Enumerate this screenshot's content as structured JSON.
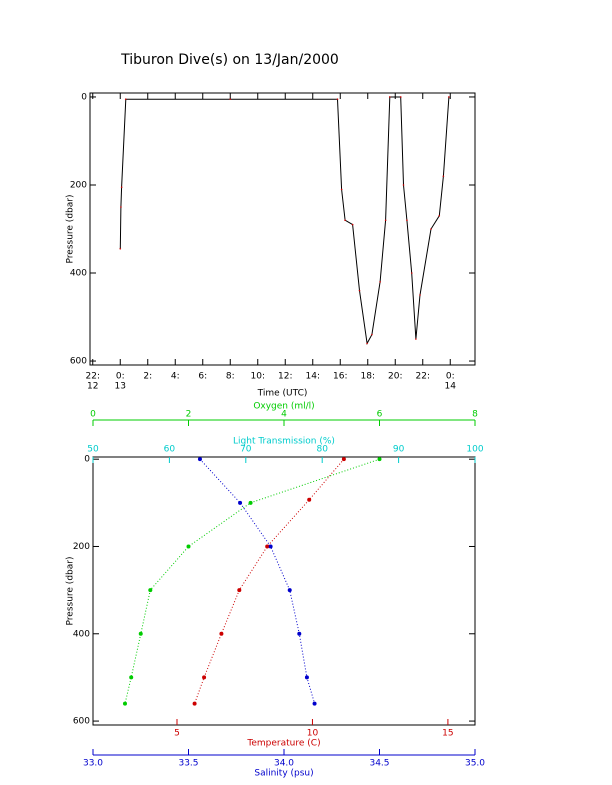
{
  "title": "Tiburon Dive(s) on 13/Jan/2000",
  "chart_data": [
    {
      "type": "line",
      "ylabel": "Pressure (dbar)",
      "xlabel": "Time (UTC)",
      "xlim": [
        -2.2,
        25.8
      ],
      "ylim": [
        609,
        -9
      ],
      "xticks": [
        {
          "value": -2,
          "label": "22:"
        },
        {
          "value": 0,
          "label": "0:"
        },
        {
          "value": 2,
          "label": "2:"
        },
        {
          "value": 4,
          "label": "4:"
        },
        {
          "value": 6,
          "label": "6:"
        },
        {
          "value": 8,
          "label": "8:"
        },
        {
          "value": 10,
          "label": "10:"
        },
        {
          "value": 12,
          "label": "12:"
        },
        {
          "value": 14,
          "label": "14:"
        },
        {
          "value": 16,
          "label": "16:"
        },
        {
          "value": 18,
          "label": "18:"
        },
        {
          "value": 20,
          "label": "20:"
        },
        {
          "value": 22,
          "label": "22:"
        },
        {
          "value": 24,
          "label": "0:"
        }
      ],
      "xtick_dates": [
        {
          "value": -2,
          "label": "12"
        },
        {
          "value": 0,
          "label": "13"
        },
        {
          "value": 24,
          "label": "14"
        }
      ],
      "yticks": [
        0,
        200,
        400,
        600
      ],
      "series": [
        {
          "color": "#000000",
          "x": [
            0.0,
            0.05,
            0.1,
            0.4,
            8,
            15.8,
            16.1,
            16.35,
            16.9,
            17.4,
            17.95,
            18.3,
            18.9,
            19.3,
            19.6,
            20.4,
            20.6,
            20.85,
            21.2,
            21.5,
            21.8,
            22.6,
            23.2,
            23.5,
            23.9
          ],
          "values": [
            345,
            250,
            205,
            5,
            5,
            5,
            210,
            280,
            290,
            440,
            560,
            540,
            420,
            280,
            0,
            0,
            200,
            280,
            400,
            550,
            450,
            300,
            270,
            180,
            0
          ]
        }
      ]
    },
    {
      "type": "scatter",
      "ylabel": "Pressure (dbar)",
      "ylim": [
        609,
        -5
      ],
      "yticks": [
        0,
        200,
        400,
        600
      ],
      "x_axes": [
        {
          "label": "Temperature (C)",
          "color": "#cc0000",
          "position": "bottom",
          "xlim": [
            1.9,
            16.0
          ],
          "xticks": [
            5,
            10,
            15
          ]
        },
        {
          "label": "Salinity (psu)",
          "color": "#0000cc",
          "position": "bottom2",
          "xlim": [
            33.0,
            35.0
          ],
          "xticks": [
            {
              "value": 33.0,
              "label": "33.0"
            },
            {
              "value": 33.5,
              "label": "33.5"
            },
            {
              "value": 34.0,
              "label": "34.0"
            },
            {
              "value": 34.5,
              "label": "34.5"
            },
            {
              "value": 35.0,
              "label": "35.0"
            }
          ]
        },
        {
          "label": "Oxygen (ml/l)",
          "color": "#00cc00",
          "position": "top2",
          "xlim": [
            0,
            8
          ],
          "xticks": [
            0,
            2,
            4,
            6,
            8
          ]
        },
        {
          "label": "Light Transmission (%)",
          "color": "#00cccc",
          "position": "top",
          "xlim": [
            50,
            100
          ],
          "xticks": [
            50,
            60,
            70,
            80,
            90,
            100
          ]
        }
      ],
      "series": [
        {
          "color": "#cc0000",
          "axis": 0,
          "x": [
            11.16,
            9.88,
            8.33,
            7.3,
            6.64,
            6.0,
            5.65
          ],
          "values": [
            0,
            93,
            200,
            300,
            400,
            500,
            560
          ]
        },
        {
          "color": "#0000cc",
          "axis": 1,
          "x": [
            33.56,
            33.77,
            33.93,
            34.03,
            34.08,
            34.12,
            34.16
          ],
          "values": [
            0,
            100,
            200,
            300,
            400,
            500,
            560
          ]
        },
        {
          "color": "#00cc00",
          "axis": 2,
          "x": [
            6.0,
            3.3,
            2.0,
            1.2,
            1.0,
            0.8,
            0.67
          ],
          "values": [
            0,
            100,
            200,
            300,
            400,
            500,
            560
          ]
        }
      ]
    }
  ]
}
